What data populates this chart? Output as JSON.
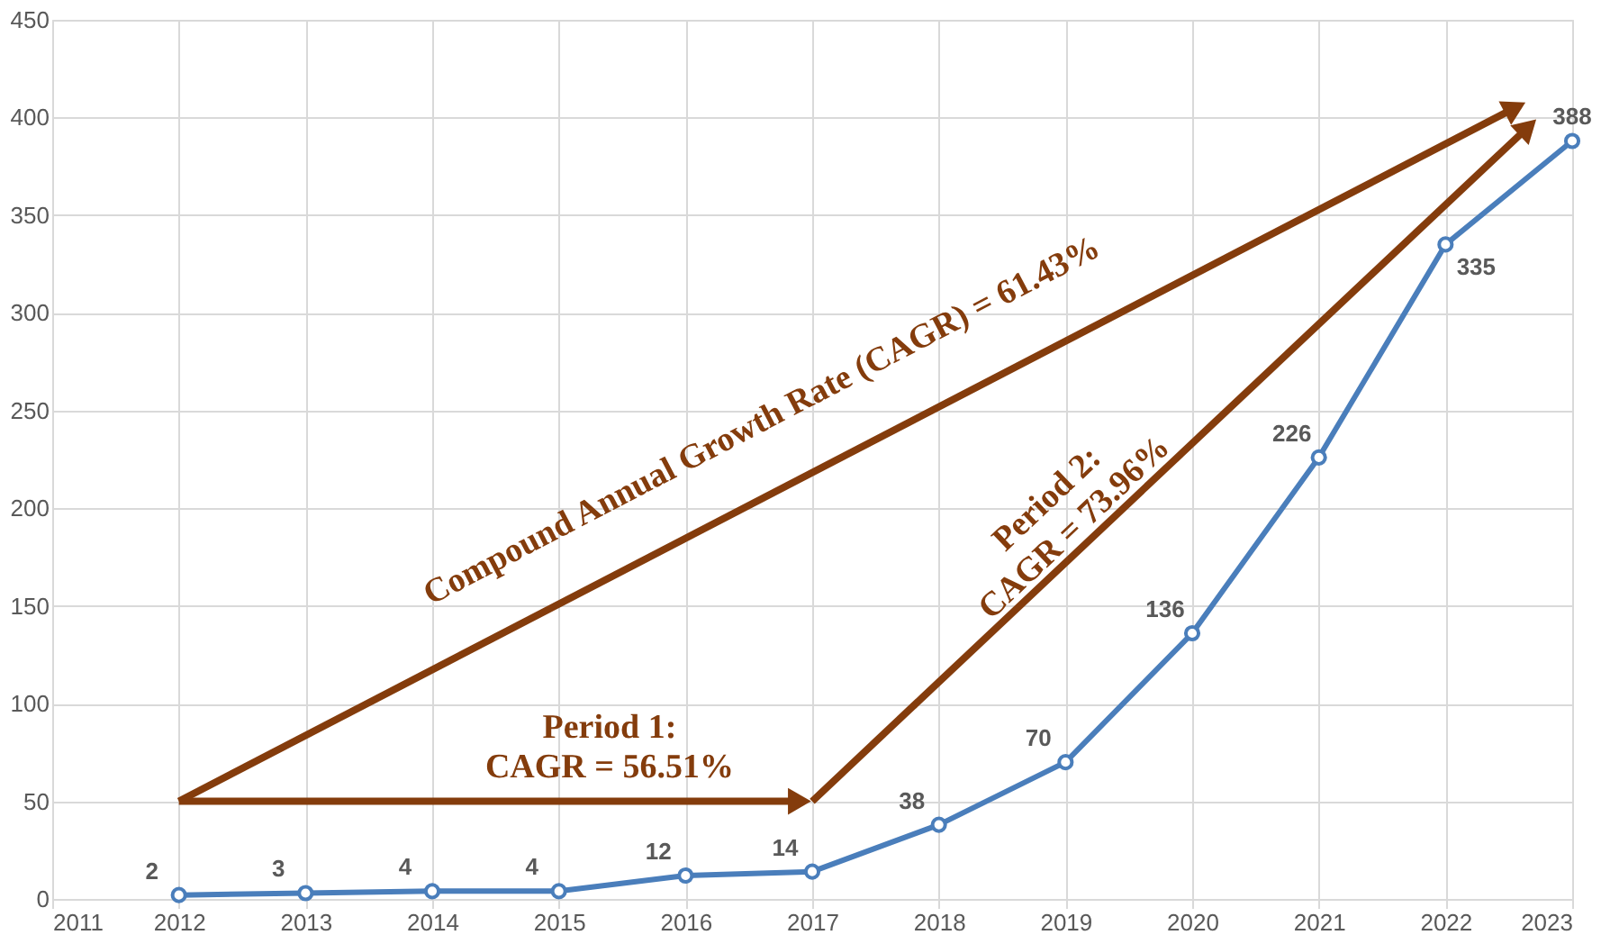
{
  "chart_data": {
    "type": "line",
    "x": [
      2012,
      2013,
      2014,
      2015,
      2016,
      2017,
      2018,
      2019,
      2020,
      2021,
      2022,
      2023
    ],
    "series": [
      {
        "color": "#4a7ebb",
        "values": [
          2,
          3,
          4,
          4,
          12,
          14,
          38,
          70,
          136,
          226,
          335,
          388
        ]
      }
    ],
    "xlim": [
      2011,
      2023
    ],
    "xticks": [
      2011,
      2012,
      2013,
      2014,
      2015,
      2016,
      2017,
      2018,
      2019,
      2020,
      2021,
      2022,
      2023
    ],
    "ylim": [
      0,
      450
    ],
    "yticks": [
      0,
      50,
      100,
      150,
      200,
      250,
      300,
      350,
      400,
      450
    ],
    "grid": true,
    "marker": "circle",
    "line_style": "solid",
    "data_labels": true,
    "annotations": [
      "Compound Annual Growth Rate (CAGR) = 61.43%",
      "Period 2:\nCAGR = 73.96%",
      "Period 1:\nCAGR = 56.51%"
    ]
  }
}
